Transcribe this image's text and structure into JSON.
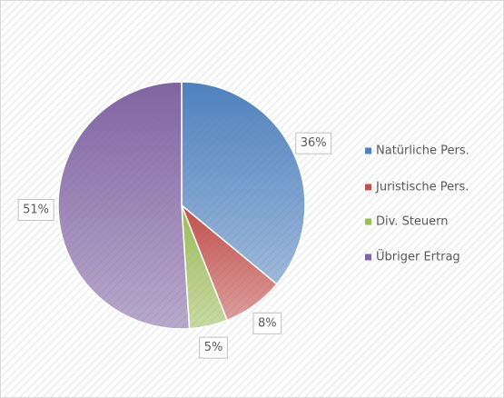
{
  "chart_data": {
    "type": "pie",
    "categories": [
      "Natürliche Pers.",
      "Juristische Pers.",
      "Div. Steuern",
      "Übriger Ertrag"
    ],
    "values": [
      36,
      8,
      5,
      51
    ],
    "value_labels": [
      "36%",
      "8%",
      "5%",
      "51%"
    ],
    "colors": [
      "#4f81bd",
      "#c0504d",
      "#9bbb59",
      "#8064a2"
    ],
    "legend": "right"
  }
}
